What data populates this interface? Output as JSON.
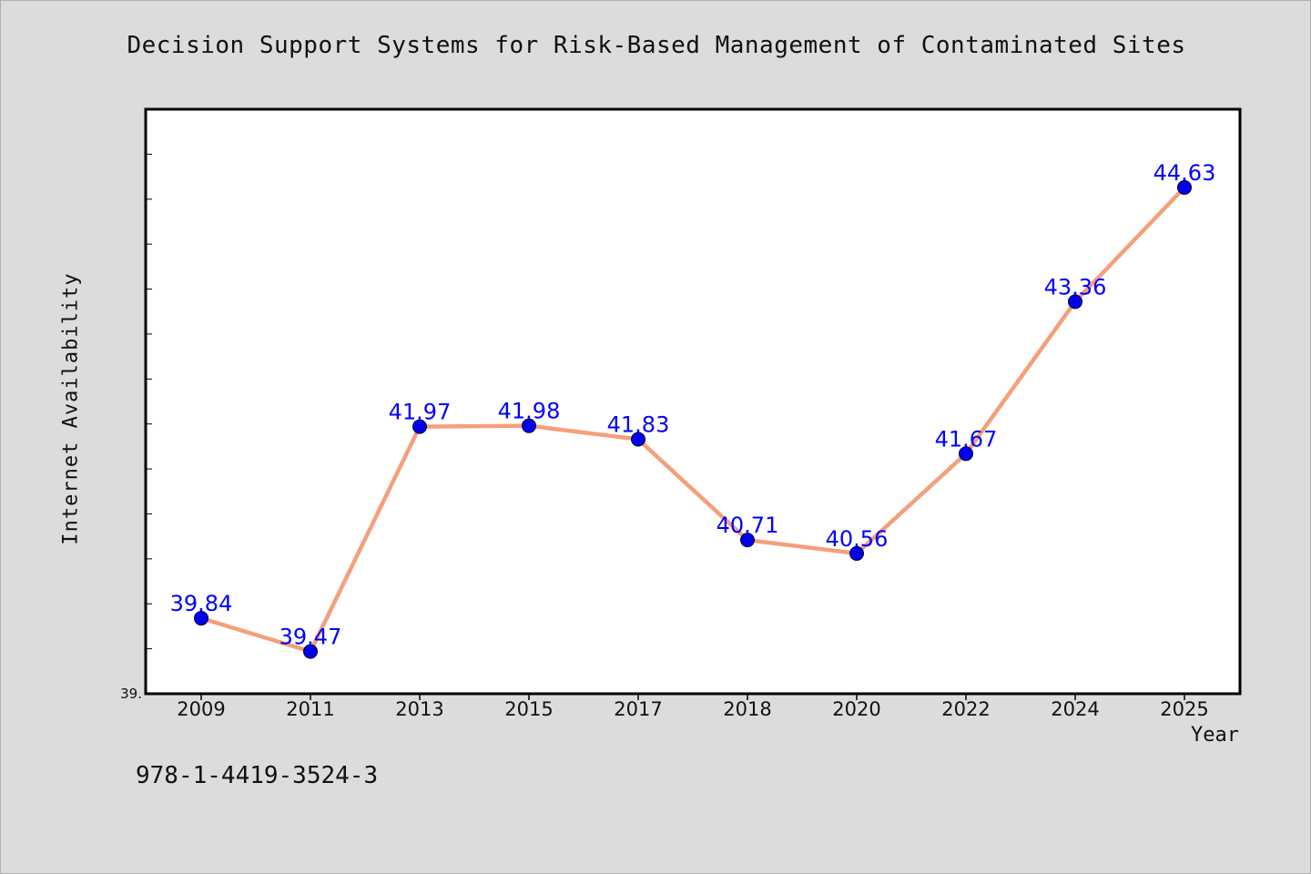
{
  "chart_data": {
    "type": "line",
    "title": "Decision Support Systems for Risk-Based Management of Contaminated Sites",
    "xlabel": "Year",
    "ylabel": "Internet Availability",
    "categories": [
      "2009",
      "2011",
      "2013",
      "2015",
      "2017",
      "2018",
      "2020",
      "2022",
      "2024",
      "2025"
    ],
    "values": [
      39.84,
      39.47,
      41.97,
      41.98,
      41.83,
      40.71,
      40.56,
      41.67,
      43.36,
      44.63
    ],
    "data_labels": [
      "39.84",
      "39.47",
      "41.97",
      "41.98",
      "41.83",
      "40.71",
      "40.56",
      "41.67",
      "43.36",
      "44.63"
    ],
    "y_tick_labels": [
      "39."
    ],
    "ylim": [
      39.0,
      45.5
    ],
    "line_color": "#f4a07a",
    "marker_color": "#0000ee",
    "label_color": "#0000ff",
    "grid": false
  },
  "footer": {
    "isbn": "978-1-4419-3524-3"
  }
}
